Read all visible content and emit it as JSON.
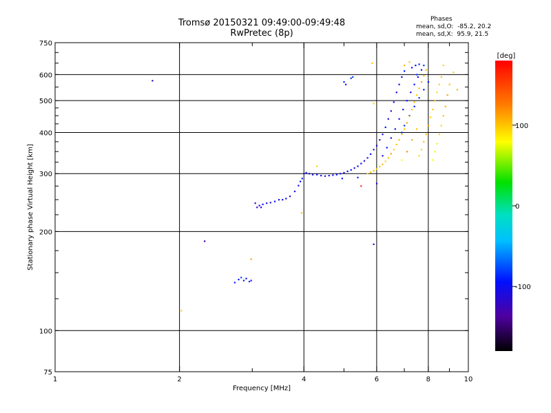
{
  "header": {
    "title_line1": "Tromsø 20150321 09:49:00-09:49:48",
    "title_line2": "RwPretec (8p)"
  },
  "phases": {
    "heading": "Phases",
    "line_o": "mean, sd,O:  -85.2, 20.2",
    "line_x": "mean, sd,X:  95.9, 21.5"
  },
  "colorbar": {
    "label": "[deg]",
    "min": -180,
    "max": 180,
    "ticks": [
      {
        "value": 100,
        "label": "100"
      },
      {
        "value": 0,
        "label": "0"
      },
      {
        "value": -100,
        "label": "-100"
      }
    ]
  },
  "chart_data": {
    "type": "scatter",
    "xlabel": "Frequency [MHz]",
    "ylabel": "Stationary phase Virtual Height [km]",
    "x_scale": "log",
    "y_scale": "log",
    "xlim": [
      1,
      10
    ],
    "ylim": [
      75,
      750
    ],
    "grid": true,
    "x_ticks": [
      {
        "value": 1,
        "label": "1"
      },
      {
        "value": 2,
        "label": "2"
      },
      {
        "value": 4,
        "label": "4"
      },
      {
        "value": 6,
        "label": "6"
      },
      {
        "value": 8,
        "label": "8"
      },
      {
        "value": 10,
        "label": "10"
      }
    ],
    "x_gridlines": [
      2,
      4,
      6,
      8
    ],
    "y_ticks": [
      {
        "value": 75,
        "label": "75"
      },
      {
        "value": 100,
        "label": "100"
      },
      {
        "value": 200,
        "label": "200"
      },
      {
        "value": 300,
        "label": "300"
      },
      {
        "value": 400,
        "label": "400"
      },
      {
        "value": 500,
        "label": "500"
      },
      {
        "value": 600,
        "label": "600"
      },
      {
        "value": 750,
        "label": "750"
      }
    ],
    "y_gridlines": [
      100,
      200,
      300,
      400,
      500,
      600
    ],
    "series": [
      {
        "mode": "O",
        "points": [
          [
            1.72,
            575,
            -120
          ],
          [
            2.3,
            187,
            -130
          ],
          [
            2.72,
            140,
            -90
          ],
          [
            2.78,
            143,
            -100
          ],
          [
            2.82,
            145,
            -80
          ],
          [
            2.86,
            142,
            -110
          ],
          [
            2.9,
            144,
            -95
          ],
          [
            2.95,
            141,
            -85
          ],
          [
            2.98,
            142,
            -100
          ],
          [
            3.05,
            244,
            -110
          ],
          [
            3.08,
            237,
            -120
          ],
          [
            3.12,
            240,
            -115
          ],
          [
            3.15,
            237,
            -110
          ],
          [
            3.18,
            242,
            -100
          ],
          [
            3.25,
            244,
            -105
          ],
          [
            3.32,
            245,
            -110
          ],
          [
            3.4,
            247,
            -100
          ],
          [
            3.48,
            250,
            -105
          ],
          [
            3.55,
            250,
            -110
          ],
          [
            3.62,
            252,
            -100
          ],
          [
            3.7,
            256,
            -105
          ],
          [
            3.8,
            265,
            -110
          ],
          [
            3.88,
            276,
            -100
          ],
          [
            3.92,
            284,
            -95
          ],
          [
            3.96,
            290,
            -90
          ],
          [
            4.0,
            300,
            -105
          ],
          [
            4.05,
            302,
            -110
          ],
          [
            4.12,
            300,
            -100
          ],
          [
            4.2,
            298,
            -105
          ],
          [
            4.3,
            298,
            -95
          ],
          [
            4.4,
            296,
            -100
          ],
          [
            4.5,
            295,
            -110
          ],
          [
            4.6,
            296,
            -105
          ],
          [
            4.7,
            297,
            -100
          ],
          [
            4.8,
            298,
            -95
          ],
          [
            4.9,
            300,
            -105
          ],
          [
            5.0,
            302,
            -110
          ],
          [
            5.1,
            305,
            -100
          ],
          [
            5.2,
            308,
            -105
          ],
          [
            5.3,
            312,
            -110
          ],
          [
            5.4,
            316,
            -100
          ],
          [
            5.5,
            322,
            -105
          ],
          [
            5.6,
            328,
            -110
          ],
          [
            5.7,
            335,
            -100
          ],
          [
            5.8,
            344,
            -95
          ],
          [
            5.9,
            355,
            -105
          ],
          [
            6.0,
            365,
            -110
          ],
          [
            6.1,
            380,
            -100
          ],
          [
            6.2,
            395,
            -105
          ],
          [
            6.3,
            415,
            -95
          ],
          [
            6.4,
            440,
            -110
          ],
          [
            6.5,
            465,
            -105
          ],
          [
            6.6,
            495,
            -100
          ],
          [
            6.7,
            530,
            -110
          ],
          [
            6.8,
            560,
            -105
          ],
          [
            6.9,
            590,
            -100
          ],
          [
            7.0,
            615,
            -95
          ],
          [
            5.0,
            570,
            -90
          ],
          [
            5.05,
            560,
            -100
          ],
          [
            5.2,
            585,
            -85
          ],
          [
            5.25,
            590,
            -80
          ],
          [
            5.9,
            183,
            -120
          ],
          [
            6.0,
            280,
            -110
          ],
          [
            4.95,
            290,
            -100
          ],
          [
            5.4,
            292,
            -90
          ],
          [
            6.2,
            340,
            -105
          ],
          [
            6.35,
            360,
            -100
          ],
          [
            6.5,
            385,
            -110
          ],
          [
            6.65,
            410,
            -95
          ],
          [
            6.8,
            440,
            -105
          ],
          [
            6.95,
            470,
            -110
          ],
          [
            7.1,
            500,
            -100
          ],
          [
            7.25,
            530,
            -105
          ],
          [
            7.4,
            560,
            -95
          ],
          [
            7.55,
            590,
            -110
          ],
          [
            7.7,
            620,
            -100
          ],
          [
            6.9,
            400,
            -90
          ],
          [
            7.0,
            420,
            -85
          ],
          [
            7.2,
            450,
            -95
          ],
          [
            7.4,
            480,
            -90
          ],
          [
            7.6,
            510,
            -85
          ],
          [
            7.8,
            540,
            -95
          ],
          [
            8.0,
            570,
            -90
          ],
          [
            7.5,
            600,
            -80
          ],
          [
            7.3,
            630,
            -100
          ],
          [
            7.45,
            640,
            -95
          ],
          [
            7.6,
            645,
            -90
          ],
          [
            7.8,
            640,
            -85
          ]
        ]
      },
      {
        "mode": "X",
        "points": [
          [
            2.02,
            115,
            95
          ],
          [
            2.98,
            165,
            110
          ],
          [
            3.95,
            228,
            100
          ],
          [
            4.3,
            316,
            95
          ],
          [
            5.5,
            275,
            160
          ],
          [
            5.85,
            650,
            100
          ],
          [
            5.9,
            490,
            95
          ],
          [
            5.7,
            300,
            95
          ],
          [
            5.8,
            303,
            100
          ],
          [
            5.9,
            306,
            105
          ],
          [
            6.0,
            310,
            95
          ],
          [
            6.1,
            315,
            100
          ],
          [
            6.2,
            320,
            105
          ],
          [
            6.3,
            327,
            95
          ],
          [
            6.4,
            335,
            100
          ],
          [
            6.5,
            345,
            110
          ],
          [
            6.6,
            355,
            95
          ],
          [
            6.7,
            368,
            100
          ],
          [
            6.8,
            380,
            105
          ],
          [
            6.9,
            395,
            95
          ],
          [
            7.0,
            410,
            100
          ],
          [
            7.1,
            428,
            110
          ],
          [
            7.2,
            448,
            95
          ],
          [
            7.3,
            470,
            100
          ],
          [
            7.4,
            495,
            105
          ],
          [
            7.5,
            520,
            95
          ],
          [
            7.6,
            545,
            100
          ],
          [
            7.7,
            570,
            110
          ],
          [
            7.8,
            595,
            95
          ],
          [
            7.9,
            620,
            100
          ],
          [
            7.6,
            340,
            90
          ],
          [
            7.7,
            355,
            95
          ],
          [
            7.8,
            375,
            100
          ],
          [
            7.9,
            395,
            105
          ],
          [
            8.0,
            420,
            110
          ],
          [
            8.1,
            445,
            95
          ],
          [
            8.2,
            470,
            100
          ],
          [
            8.3,
            500,
            105
          ],
          [
            8.4,
            530,
            90
          ],
          [
            8.5,
            560,
            95
          ],
          [
            8.6,
            590,
            100
          ],
          [
            8.2,
            330,
            80
          ],
          [
            8.3,
            350,
            75
          ],
          [
            8.4,
            370,
            85
          ],
          [
            8.5,
            395,
            90
          ],
          [
            8.6,
            420,
            95
          ],
          [
            8.7,
            450,
            100
          ],
          [
            8.8,
            480,
            105
          ],
          [
            8.9,
            520,
            110
          ],
          [
            9.0,
            560,
            100
          ],
          [
            9.2,
            610,
            95
          ],
          [
            9.4,
            540,
            105
          ],
          [
            6.9,
            330,
            80
          ],
          [
            7.1,
            350,
            120
          ],
          [
            7.3,
            380,
            110
          ],
          [
            7.5,
            410,
            100
          ],
          [
            7.0,
            640,
            105
          ],
          [
            7.2,
            655,
            100
          ],
          [
            8.7,
            640,
            95
          ]
        ]
      }
    ]
  }
}
